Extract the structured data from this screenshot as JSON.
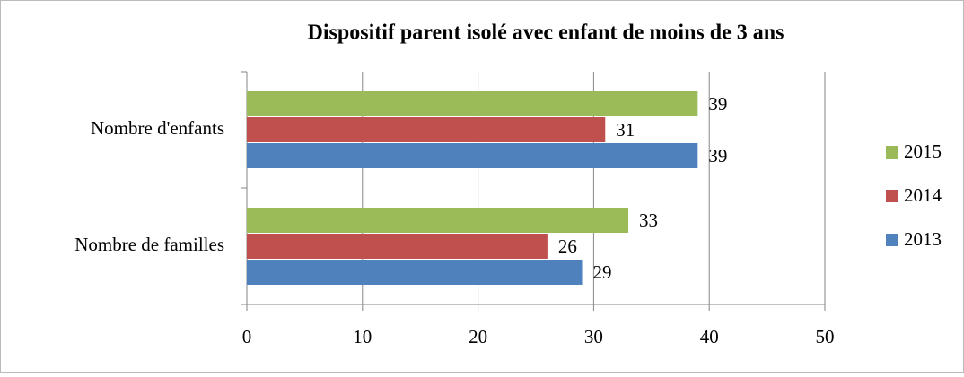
{
  "chart_data": {
    "type": "hbar",
    "title": "Dispositif parent isolé avec enfant de moins de 3 ans",
    "categories": [
      "Nombre d'enfants",
      "Nombre de familles"
    ],
    "series": [
      {
        "name": "2013",
        "color": "#4f81bd",
        "values": [
          39,
          29
        ]
      },
      {
        "name": "2014",
        "color": "#c0504d",
        "values": [
          31,
          26
        ]
      },
      {
        "name": "2015",
        "color": "#9bbb59",
        "values": [
          39,
          33
        ]
      }
    ],
    "xlim": [
      0,
      50
    ],
    "xticks": [
      0,
      10,
      20,
      30,
      40,
      50
    ],
    "grid": true,
    "legend": "right"
  }
}
